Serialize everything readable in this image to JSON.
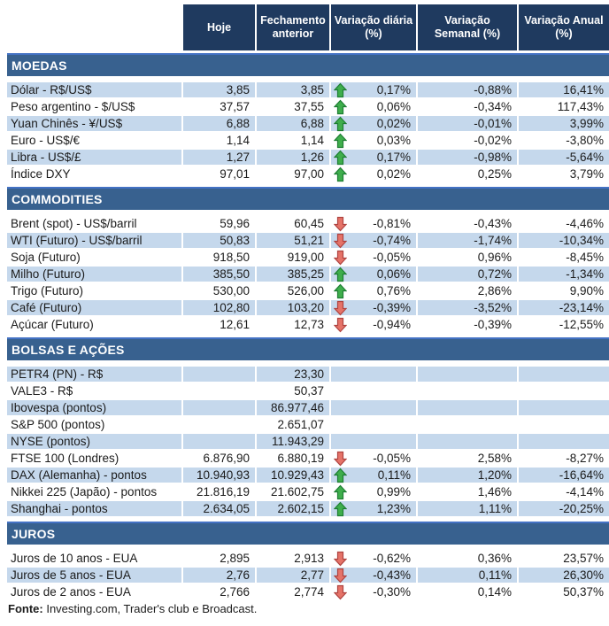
{
  "table": {
    "columns": [
      "Hoje",
      "Fechamento anterior",
      "Variação diária (%)",
      "Variação Semanal (%)",
      "Variação Anual (%)"
    ],
    "sections": [
      {
        "title": "MOEDAS",
        "rows": [
          {
            "label": "Dólar - R$/US$",
            "hoje": "3,85",
            "fechamento": "3,85",
            "arrow": "up",
            "var_diaria": "0,17%",
            "var_semanal": "-0,88%",
            "var_anual": "16,41%"
          },
          {
            "label": "Peso argentino - $/US$",
            "hoje": "37,57",
            "fechamento": "37,55",
            "arrow": "up",
            "var_diaria": "0,06%",
            "var_semanal": "-0,34%",
            "var_anual": "117,43%"
          },
          {
            "label": "Yuan Chinês - ¥/US$",
            "hoje": "6,88",
            "fechamento": "6,88",
            "arrow": "up",
            "var_diaria": "0,02%",
            "var_semanal": "-0,01%",
            "var_anual": "3,99%"
          },
          {
            "label": "Euro - US$/€",
            "hoje": "1,14",
            "fechamento": "1,14",
            "arrow": "up",
            "var_diaria": "0,03%",
            "var_semanal": "-0,02%",
            "var_anual": "-3,80%"
          },
          {
            "label": "Libra - US$/£",
            "hoje": "1,27",
            "fechamento": "1,26",
            "arrow": "up",
            "var_diaria": "0,17%",
            "var_semanal": "-0,98%",
            "var_anual": "-5,64%"
          },
          {
            "label": "Índice DXY",
            "hoje": "97,01",
            "fechamento": "97,00",
            "arrow": "up",
            "var_diaria": "0,02%",
            "var_semanal": "0,25%",
            "var_anual": "3,79%"
          }
        ]
      },
      {
        "title": "COMMODITIES",
        "rows": [
          {
            "label": "Brent (spot) - US$/barril",
            "hoje": "59,96",
            "fechamento": "60,45",
            "arrow": "down",
            "var_diaria": "-0,81%",
            "var_semanal": "-0,43%",
            "var_anual": "-4,46%"
          },
          {
            "label": "WTI (Futuro) - US$/barril",
            "hoje": "50,83",
            "fechamento": "51,21",
            "arrow": "down",
            "var_diaria": "-0,74%",
            "var_semanal": "-1,74%",
            "var_anual": "-10,34%"
          },
          {
            "label": "Soja (Futuro)",
            "hoje": "918,50",
            "fechamento": "919,00",
            "arrow": "down",
            "var_diaria": "-0,05%",
            "var_semanal": "0,96%",
            "var_anual": "-8,45%"
          },
          {
            "label": "Milho (Futuro)",
            "hoje": "385,50",
            "fechamento": "385,25",
            "arrow": "up",
            "var_diaria": "0,06%",
            "var_semanal": "0,72%",
            "var_anual": "-1,34%"
          },
          {
            "label": "Trigo (Futuro)",
            "hoje": "530,00",
            "fechamento": "526,00",
            "arrow": "up",
            "var_diaria": "0,76%",
            "var_semanal": "2,86%",
            "var_anual": "9,90%"
          },
          {
            "label": "Café (Futuro)",
            "hoje": "102,80",
            "fechamento": "103,20",
            "arrow": "down",
            "var_diaria": "-0,39%",
            "var_semanal": "-3,52%",
            "var_anual": "-23,14%"
          },
          {
            "label": "Açúcar (Futuro)",
            "hoje": "12,61",
            "fechamento": "12,73",
            "arrow": "down",
            "var_diaria": "-0,94%",
            "var_semanal": "-0,39%",
            "var_anual": "-12,55%"
          }
        ]
      },
      {
        "title": "BOLSAS E AÇÕES",
        "rows": [
          {
            "label": "PETR4 (PN) - R$",
            "hoje": "",
            "fechamento": "23,30",
            "arrow": "",
            "var_diaria": "",
            "var_semanal": "",
            "var_anual": ""
          },
          {
            "label": "VALE3 - R$",
            "hoje": "",
            "fechamento": "50,37",
            "arrow": "",
            "var_diaria": "",
            "var_semanal": "",
            "var_anual": ""
          },
          {
            "label": "Ibovespa (pontos)",
            "hoje": "",
            "fechamento": "86.977,46",
            "arrow": "",
            "var_diaria": "",
            "var_semanal": "",
            "var_anual": ""
          },
          {
            "label": "S&P 500 (pontos)",
            "hoje": "",
            "fechamento": "2.651,07",
            "arrow": "",
            "var_diaria": "",
            "var_semanal": "",
            "var_anual": ""
          },
          {
            "label": "NYSE (pontos)",
            "hoje": "",
            "fechamento": "11.943,29",
            "arrow": "",
            "var_diaria": "",
            "var_semanal": "",
            "var_anual": ""
          },
          {
            "label": "FTSE 100 (Londres)",
            "hoje": "6.876,90",
            "fechamento": "6.880,19",
            "arrow": "down",
            "var_diaria": "-0,05%",
            "var_semanal": "2,58%",
            "var_anual": "-8,27%"
          },
          {
            "label": "DAX (Alemanha) - pontos",
            "hoje": "10.940,93",
            "fechamento": "10.929,43",
            "arrow": "up",
            "var_diaria": "0,11%",
            "var_semanal": "1,20%",
            "var_anual": "-16,64%"
          },
          {
            "label": "Nikkei 225 (Japão) - pontos",
            "hoje": "21.816,19",
            "fechamento": "21.602,75",
            "arrow": "up",
            "var_diaria": "0,99%",
            "var_semanal": "1,46%",
            "var_anual": "-4,14%"
          },
          {
            "label": "Shanghai - pontos",
            "hoje": "2.634,05",
            "fechamento": "2.602,15",
            "arrow": "up",
            "var_diaria": "1,23%",
            "var_semanal": "1,11%",
            "var_anual": "-20,25%"
          }
        ]
      },
      {
        "title": "JUROS",
        "rows": [
          {
            "label": "Juros de 10 anos - EUA",
            "hoje": "2,895",
            "fechamento": "2,913",
            "arrow": "down",
            "var_diaria": "-0,62%",
            "var_semanal": "0,36%",
            "var_anual": "23,57%"
          },
          {
            "label": "Juros de 5 anos - EUA",
            "hoje": "2,76",
            "fechamento": "2,77",
            "arrow": "down",
            "var_diaria": "-0,43%",
            "var_semanal": "0,11%",
            "var_anual": "26,30%"
          },
          {
            "label": "Juros de 2 anos - EUA",
            "hoje": "2,766",
            "fechamento": "2,774",
            "arrow": "down",
            "var_diaria": "-0,30%",
            "var_semanal": "0,14%",
            "var_anual": "50,37%"
          }
        ]
      }
    ]
  },
  "footer": {
    "label": "Fonte:",
    "text": " Investing.com, Trader's club e Broadcast."
  },
  "colors": {
    "header_bg": "#1F3A5F",
    "header_text": "#FFFFFF",
    "section_band_bg": "#38618F",
    "section_band_top_border": "#4472C4",
    "row_shaded_bg": "#C5D8EC",
    "up_arrow": "#3FAE4C",
    "up_arrow_border": "#1E7E34",
    "down_arrow": "#E57368",
    "down_arrow_border": "#AF4340",
    "text": "#1B1B1B"
  }
}
